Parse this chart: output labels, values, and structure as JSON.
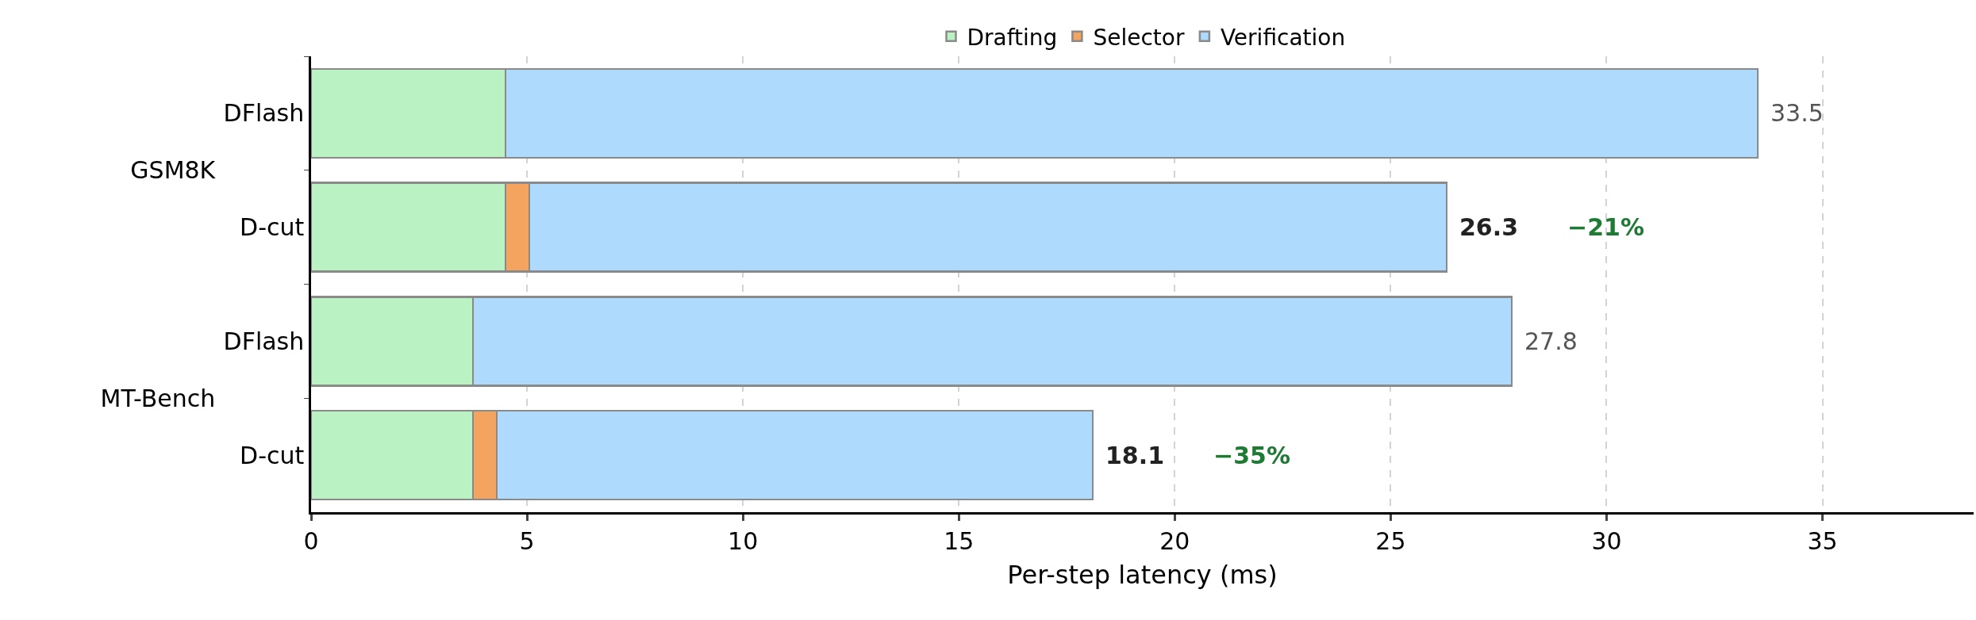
{
  "chart_data": {
    "type": "bar",
    "orientation": "horizontal",
    "stacked": true,
    "xlabel": "Per-step latency (ms)",
    "categories": [
      "DFlash",
      "D-cut",
      "DFlash",
      "D-cut"
    ],
    "series": [
      {
        "name": "Drafting",
        "color": "#bbf2c3",
        "values": [
          4.5,
          4.5,
          3.75,
          3.75
        ]
      },
      {
        "name": "Selector",
        "color": "#f4a45e",
        "values": [
          0,
          0.55,
          0,
          0.55
        ]
      },
      {
        "name": "Verification",
        "color": "#aedafe",
        "values": [
          29.0,
          21.25,
          24.05,
          13.8
        ]
      }
    ],
    "totals": [
      "33.5",
      "26.3",
      "27.8",
      "18.1"
    ],
    "annotations": [
      "GSM8K",
      "MT-Bench",
      "−21%",
      "−35%"
    ],
    "xlim": [
      0,
      38.5
    ],
    "xticks": [
      0,
      5,
      10,
      15,
      20,
      25,
      30,
      35
    ],
    "grid": "x",
    "legend": "top"
  }
}
